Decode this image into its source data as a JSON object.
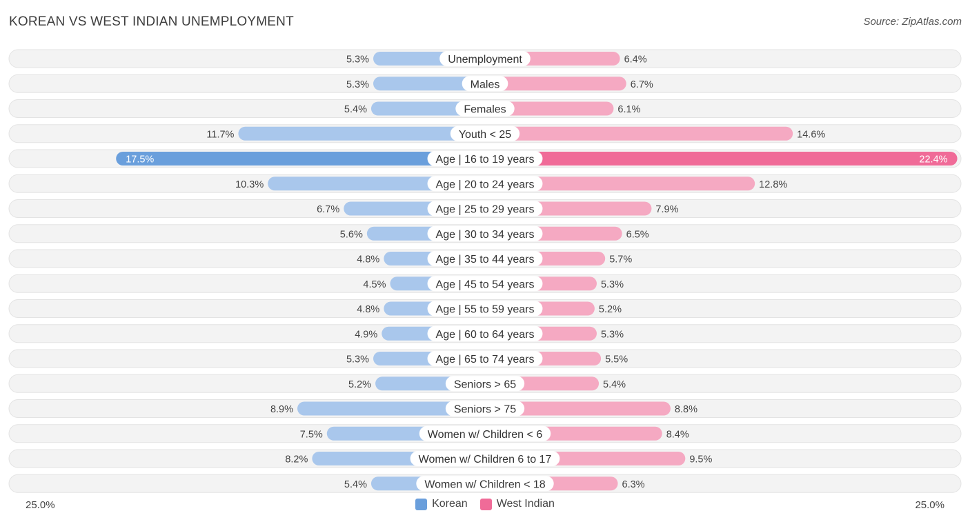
{
  "title": "KOREAN VS WEST INDIAN UNEMPLOYMENT",
  "source": "Source: ZipAtlas.com",
  "colors": {
    "korean_light": "#a9c7ec",
    "korean_strong": "#6a9fdc",
    "west_indian_light": "#f5a9c2",
    "west_indian_strong": "#f06b98",
    "row_bg": "#f2f2f2"
  },
  "chart_data": {
    "type": "bar",
    "orientation": "horizontal-diverging",
    "axis_max": 25.0,
    "axis_left_label": "25.0%",
    "axis_right_label": "25.0%",
    "categories": [
      "Unemployment",
      "Males",
      "Females",
      "Youth < 25",
      "Age | 16 to 19 years",
      "Age | 20 to 24 years",
      "Age | 25 to 29 years",
      "Age | 30 to 34 years",
      "Age | 35 to 44 years",
      "Age | 45 to 54 years",
      "Age | 55 to 59 years",
      "Age | 60 to 64 years",
      "Age | 65 to 74 years",
      "Seniors > 65",
      "Seniors > 75",
      "Women w/ Children < 6",
      "Women w/ Children 6 to 17",
      "Women w/ Children < 18"
    ],
    "series": [
      {
        "name": "Korean",
        "values": [
          5.3,
          5.3,
          5.4,
          11.7,
          17.5,
          10.3,
          6.7,
          5.6,
          4.8,
          4.5,
          4.8,
          4.9,
          5.3,
          5.2,
          8.9,
          7.5,
          8.2,
          5.4
        ],
        "labels": [
          "5.3%",
          "5.3%",
          "5.4%",
          "11.7%",
          "17.5%",
          "10.3%",
          "6.7%",
          "5.6%",
          "4.8%",
          "4.5%",
          "4.8%",
          "4.9%",
          "5.3%",
          "5.2%",
          "8.9%",
          "7.5%",
          "8.2%",
          "5.4%"
        ]
      },
      {
        "name": "West Indian",
        "values": [
          6.4,
          6.7,
          6.1,
          14.6,
          22.4,
          12.8,
          7.9,
          6.5,
          5.7,
          5.3,
          5.2,
          5.3,
          5.5,
          5.4,
          8.8,
          8.4,
          9.5,
          6.3
        ],
        "labels": [
          "6.4%",
          "6.7%",
          "6.1%",
          "14.6%",
          "22.4%",
          "12.8%",
          "7.9%",
          "6.5%",
          "5.7%",
          "5.3%",
          "5.2%",
          "5.3%",
          "5.5%",
          "5.4%",
          "8.8%",
          "8.4%",
          "9.5%",
          "6.3%"
        ]
      }
    ],
    "legend": [
      "Korean",
      "West Indian"
    ],
    "legend_position": "bottom-center"
  }
}
